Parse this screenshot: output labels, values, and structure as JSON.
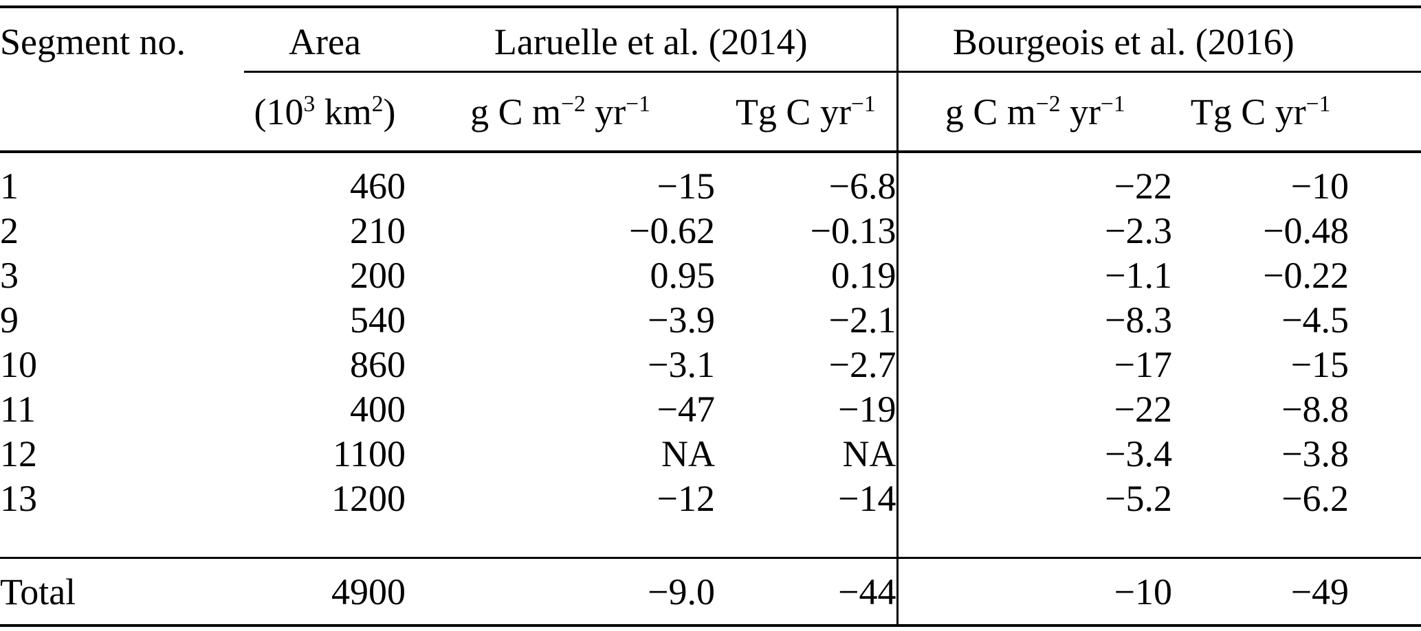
{
  "table": {
    "col_headers": {
      "segment": "Segment no.",
      "area": "Area",
      "area_unit": "(10^{3} km^{2})",
      "group1": "Laruelle et al. (2014)",
      "group2": "Bourgeois et al. (2016)",
      "unit_gc_g1": "g C m^{−2} yr^{−1}",
      "unit_tg_g1": "Tg C yr^{−1}",
      "unit_gc_g2": "g C m^{−2} yr^{−1}",
      "unit_tg_g2": "Tg C yr^{−1}"
    },
    "rows": [
      {
        "segment": "1",
        "area": "460",
        "l_gc": "−15",
        "l_tg": "−6.8",
        "b_gc": "−22",
        "b_tg": "−10"
      },
      {
        "segment": "2",
        "area": "210",
        "l_gc": "−0.62",
        "l_tg": "−0.13",
        "b_gc": "−2.3",
        "b_tg": "−0.48"
      },
      {
        "segment": "3",
        "area": "200",
        "l_gc": "0.95",
        "l_tg": "0.19",
        "b_gc": "−1.1",
        "b_tg": "−0.22"
      },
      {
        "segment": "9",
        "area": "540",
        "l_gc": "−3.9",
        "l_tg": "−2.1",
        "b_gc": "−8.3",
        "b_tg": "−4.5"
      },
      {
        "segment": "10",
        "area": "860",
        "l_gc": "−3.1",
        "l_tg": "−2.7",
        "b_gc": "−17",
        "b_tg": "−15"
      },
      {
        "segment": "11",
        "area": "400",
        "l_gc": "−47",
        "l_tg": "−19",
        "b_gc": "−22",
        "b_tg": "−8.8"
      },
      {
        "segment": "12",
        "area": "1100",
        "l_gc": "NA",
        "l_tg": "NA",
        "b_gc": "−3.4",
        "b_tg": "−3.8"
      },
      {
        "segment": "13",
        "area": "1200",
        "l_gc": "−12",
        "l_tg": "−14",
        "b_gc": "−5.2",
        "b_tg": "−6.2"
      }
    ],
    "total": {
      "segment": "Total",
      "area": "4900",
      "l_gc": "−9.0",
      "l_tg": "−44",
      "b_gc": "−10",
      "b_tg": "−49"
    }
  }
}
